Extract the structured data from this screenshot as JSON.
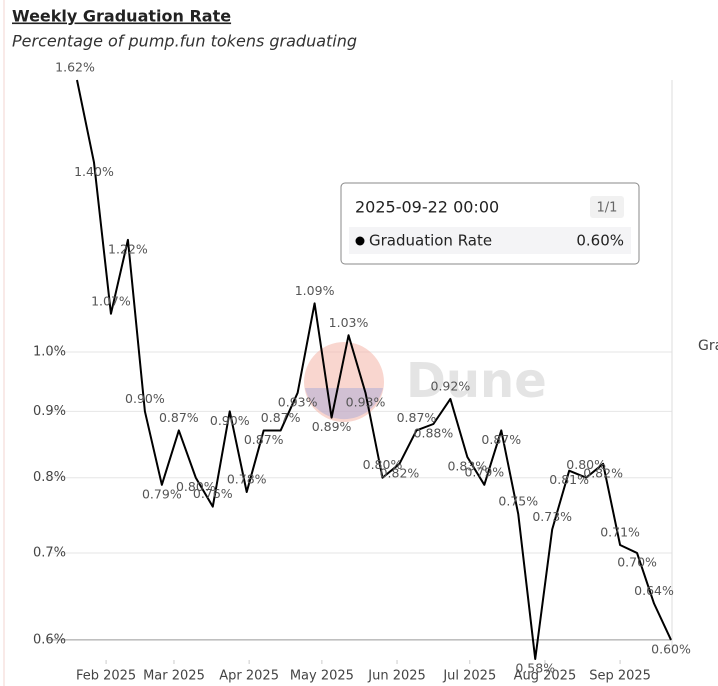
{
  "chart_data": {
    "type": "line",
    "title": "Weekly Graduation Rate",
    "subtitle": "Percentage of pump.fun tokens graduating",
    "watermark": "Dune",
    "x": [
      "2025-01-20",
      "2025-01-27",
      "2025-02-03",
      "2025-02-10",
      "2025-02-17",
      "2025-02-24",
      "2025-03-03",
      "2025-03-10",
      "2025-03-17",
      "2025-03-24",
      "2025-03-31",
      "2025-04-07",
      "2025-04-14",
      "2025-04-21",
      "2025-04-28",
      "2025-05-05",
      "2025-05-12",
      "2025-05-19",
      "2025-05-26",
      "2025-06-02",
      "2025-06-09",
      "2025-06-16",
      "2025-06-23",
      "2025-06-30",
      "2025-07-07",
      "2025-07-14",
      "2025-07-21",
      "2025-07-28",
      "2025-08-04",
      "2025-08-11",
      "2025-08-18",
      "2025-08-25",
      "2025-09-01",
      "2025-09-08",
      "2025-09-15",
      "2025-09-22"
    ],
    "series": [
      {
        "name": "Graduation Rate",
        "color": "#000000",
        "values": [
          1.62,
          1.4,
          1.07,
          1.22,
          0.9,
          0.79,
          0.87,
          0.8,
          0.76,
          0.9,
          0.78,
          0.87,
          0.87,
          0.93,
          1.09,
          0.89,
          1.03,
          0.93,
          0.8,
          0.82,
          0.87,
          0.88,
          0.92,
          0.83,
          0.79,
          0.87,
          0.75,
          0.58,
          0.73,
          0.81,
          0.8,
          0.82,
          0.71,
          0.7,
          0.64,
          0.6
        ],
        "value_labels": [
          "1.62%",
          "1.40%",
          "1.07%",
          "1.22%",
          "0.90%",
          "0.79%",
          "0.87%",
          "0.80%",
          "0.76%",
          "0.90%",
          "0.78%",
          "0.87%",
          "0.87%",
          "0.93%",
          "1.09%",
          "0.89%",
          "1.03%",
          "0.93%",
          "0.80%",
          "0.82%",
          "0.87%",
          "0.88%",
          "0.92%",
          "0.83%",
          "0.79%",
          "0.87%",
          "0.75%",
          "0.58%",
          "0.73%",
          "0.81%",
          "0.80%",
          "0.82%",
          "0.71%",
          "0.70%",
          "0.64%",
          "0.60%"
        ]
      }
    ],
    "log_scale": true,
    "grid": true,
    "ylim": [
      0.58,
      1.62
    ],
    "yticks": [
      {
        "value": 0.6,
        "label": "0.6%"
      },
      {
        "value": 0.7,
        "label": "0.7%"
      },
      {
        "value": 0.8,
        "label": "0.8%"
      },
      {
        "value": 0.9,
        "label": "0.9%"
      },
      {
        "value": 1.0,
        "label": "1.0%"
      }
    ],
    "xlim": [
      "2025-01-20",
      "2025-09-22"
    ],
    "xticks": [
      {
        "value": "2025-02-01",
        "label": "Feb 2025"
      },
      {
        "value": "2025-03-01",
        "label": "Mar 2025"
      },
      {
        "value": "2025-04-01",
        "label": "Apr 2025"
      },
      {
        "value": "2025-05-01",
        "label": "May 2025"
      },
      {
        "value": "2025-06-01",
        "label": "Jun 2025"
      },
      {
        "value": "2025-07-01",
        "label": "Jul 2025"
      },
      {
        "value": "2025-08-01",
        "label": "Aug 2025"
      },
      {
        "value": "2025-09-01",
        "label": "Sep 2025"
      }
    ],
    "tooltip": {
      "date": "2025-09-22 00:00",
      "page": "1/1",
      "label": "Graduation Rate",
      "value": "0.60%"
    }
  }
}
